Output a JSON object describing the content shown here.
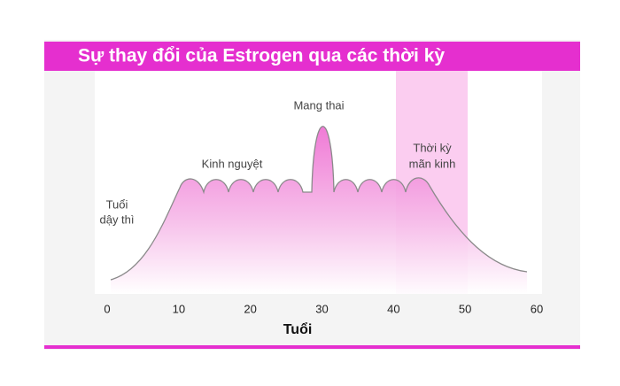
{
  "header": {
    "title": "Sự thay đổi của Estrogen qua các thời kỳ"
  },
  "axis": {
    "label": "Tuổi",
    "ticks": [
      "0",
      "10",
      "20",
      "30",
      "40",
      "50",
      "60"
    ]
  },
  "annotations": {
    "puberty": [
      "Tuổi",
      "dậy thì"
    ],
    "menstruation": [
      "Kinh nguyệt"
    ],
    "pregnancy": [
      "Mang thai"
    ],
    "menopause": [
      "Thời kỳ",
      "mãn kinh"
    ]
  }
}
